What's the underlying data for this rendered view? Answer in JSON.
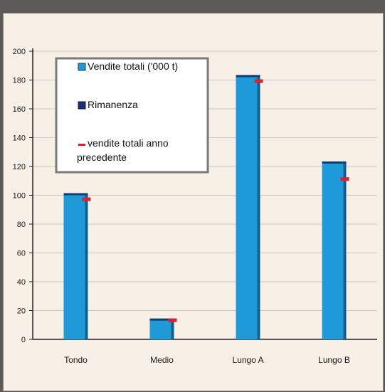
{
  "chart_data": {
    "type": "bar",
    "categories": [
      "Tondo",
      "Medio",
      "Lungo A",
      "Lungo B"
    ],
    "series": [
      {
        "name": "Vendite totali ('000 t)",
        "values": [
          101,
          14,
          183,
          123
        ],
        "color": "#1e9ad8"
      },
      {
        "name": "Rimanenza",
        "values": [
          0,
          0,
          0,
          0
        ],
        "color": "#1c2f7a"
      },
      {
        "name": "vendite totali anno precedente",
        "values": [
          97,
          13,
          179,
          111
        ],
        "color": "#d8232a"
      }
    ],
    "legend_lines": [
      [
        "Vendite totali ('000 t)"
      ],
      [
        "Rimanenza"
      ],
      [
        "vendite totali anno",
        "precedente"
      ]
    ],
    "legend_placement": "top-left",
    "ylim": [
      0,
      200
    ],
    "yticks": [
      0,
      20,
      40,
      60,
      80,
      100,
      120,
      140,
      160,
      180,
      200
    ],
    "grid": true
  }
}
